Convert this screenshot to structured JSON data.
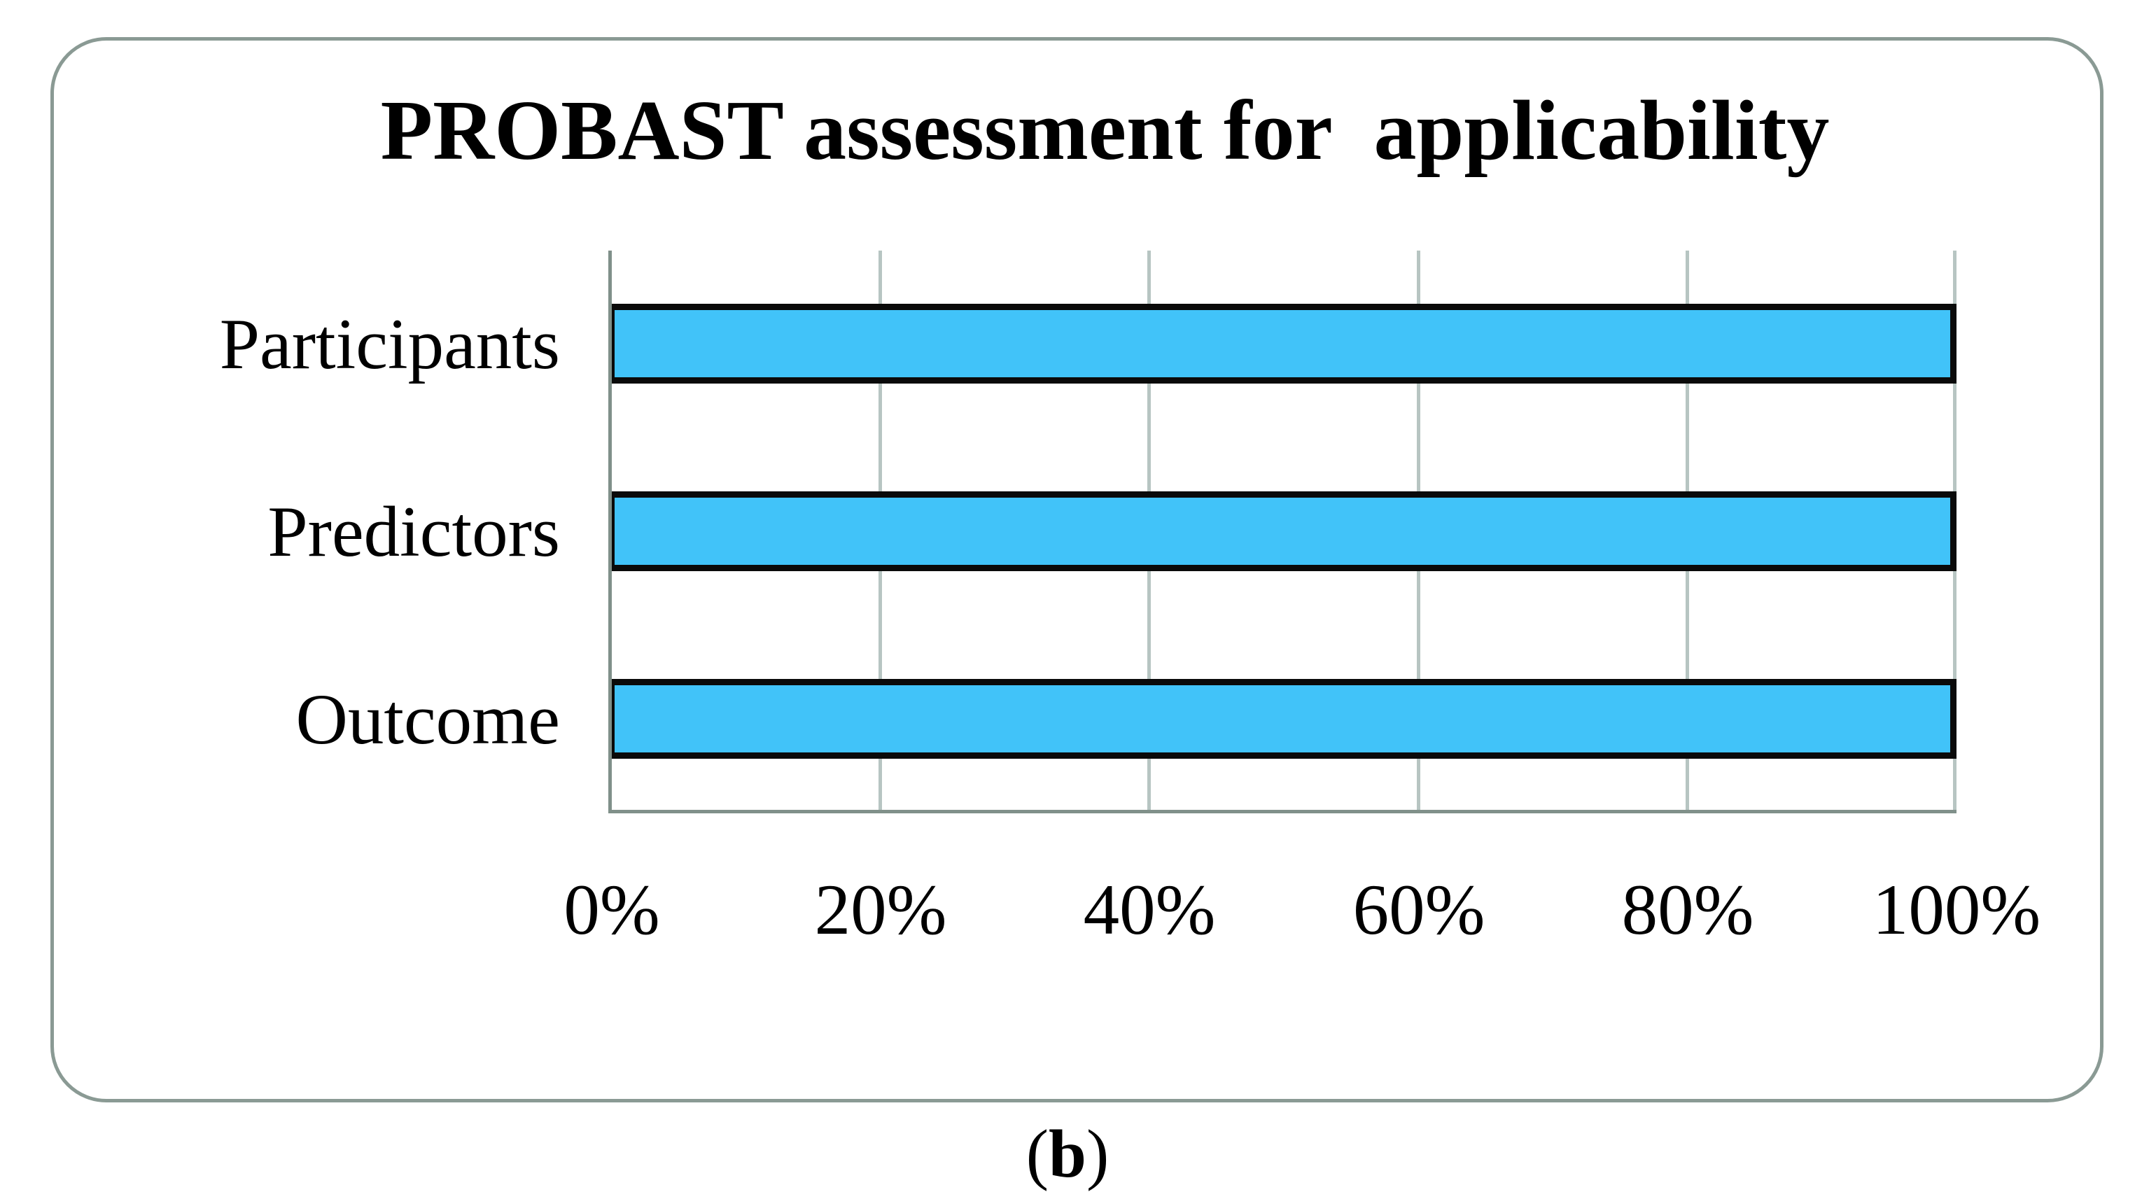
{
  "figure": {
    "caption_open": "(",
    "caption_letter": "b",
    "caption_close": ")"
  },
  "chart_data": {
    "type": "bar",
    "orientation": "horizontal",
    "title": "PROBAST assessment for  applicability",
    "categories": [
      "Participants",
      "Predictors",
      "Outcome"
    ],
    "values": [
      100,
      100,
      100
    ],
    "value_unit": "%",
    "xlabel": "",
    "ylabel": "",
    "xlim": [
      0,
      100
    ],
    "x_tick_labels": [
      "0%",
      "20%",
      "40%",
      "60%",
      "80%",
      "100%"
    ],
    "grid": "vertical",
    "legend": "none",
    "colors": {
      "bar_fill": "#41c3f9",
      "bar_border": "#0a0a0a",
      "axis_line": "#80908a",
      "gridline": "#b7c5c2",
      "frame_border": "#8a9a94",
      "text": "#000000",
      "background": "#ffffff"
    }
  }
}
